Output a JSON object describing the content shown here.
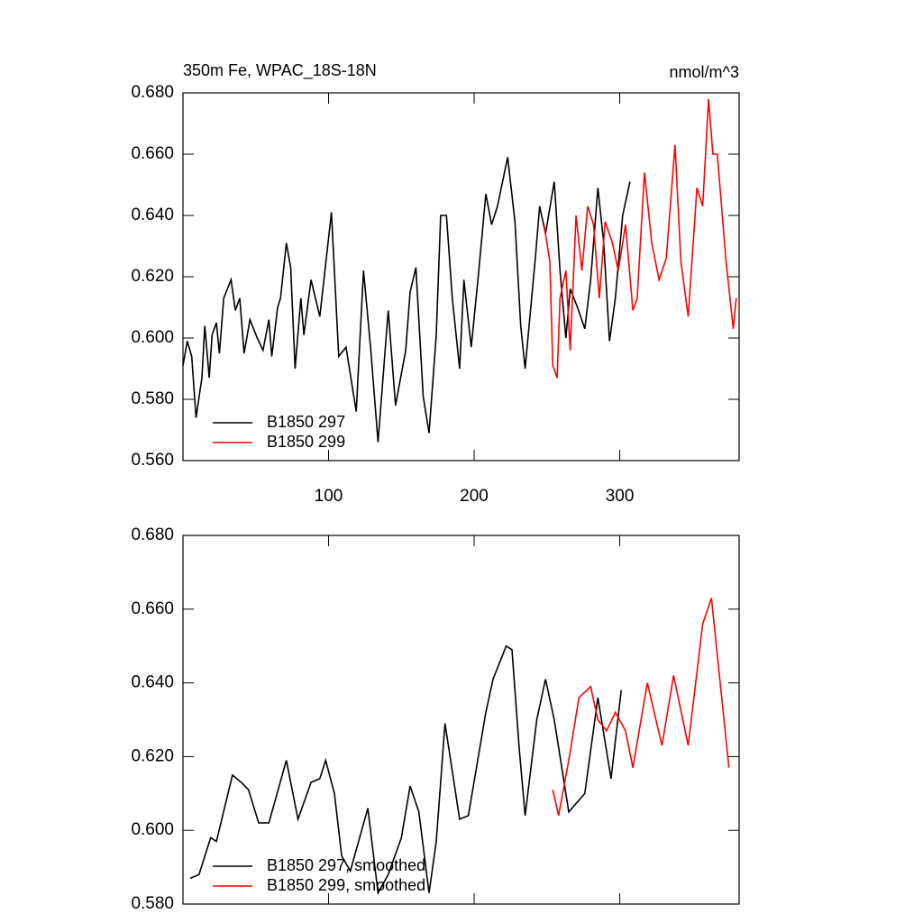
{
  "chart_data": [
    {
      "type": "line",
      "title": "350m Fe, WPAC_18S-18N",
      "right_title": "nmol/m^3",
      "xlim": [
        0,
        382
      ],
      "xticks": [
        100,
        200,
        300
      ],
      "xtick_labels": true,
      "ylim": [
        0.56,
        0.68
      ],
      "yticks": [
        {
          "value": 0.56,
          "label": "0.560"
        },
        {
          "value": 0.58,
          "label": "0.580"
        },
        {
          "value": 0.6,
          "label": "0.600"
        },
        {
          "value": 0.62,
          "label": "0.620"
        },
        {
          "value": 0.64,
          "label": "0.640"
        },
        {
          "value": 0.66,
          "label": "0.660"
        },
        {
          "value": 0.68,
          "label": "0.680"
        }
      ],
      "legend": "lower left",
      "series": [
        {
          "name": "B1850 297",
          "color": "#000000",
          "x": [
            0,
            3,
            6,
            9,
            13,
            15,
            18,
            20,
            23,
            25,
            28,
            33,
            36,
            39,
            42,
            46,
            51,
            55,
            59,
            61,
            65,
            67,
            71,
            74,
            77,
            81,
            83,
            88,
            94,
            102,
            107,
            112,
            119,
            124,
            129,
            134,
            141,
            146,
            153,
            156,
            160,
            165,
            169,
            174,
            177,
            181,
            185,
            190,
            193,
            198,
            203,
            208,
            212,
            216,
            223,
            228,
            232,
            235,
            242,
            245,
            249,
            255,
            259,
            263,
            266,
            271,
            276,
            280,
            285,
            289,
            293,
            297,
            302,
            307
          ],
          "values": [
            0.591,
            0.599,
            0.594,
            0.574,
            0.587,
            0.604,
            0.587,
            0.601,
            0.605,
            0.595,
            0.613,
            0.619,
            0.609,
            0.613,
            0.595,
            0.606,
            0.6,
            0.596,
            0.606,
            0.594,
            0.61,
            0.613,
            0.631,
            0.623,
            0.59,
            0.613,
            0.601,
            0.619,
            0.607,
            0.641,
            0.594,
            0.597,
            0.576,
            0.622,
            0.596,
            0.566,
            0.609,
            0.578,
            0.596,
            0.615,
            0.623,
            0.581,
            0.569,
            0.601,
            0.64,
            0.64,
            0.613,
            0.59,
            0.619,
            0.597,
            0.621,
            0.647,
            0.637,
            0.643,
            0.659,
            0.638,
            0.604,
            0.59,
            0.626,
            0.643,
            0.634,
            0.651,
            0.622,
            0.6,
            0.616,
            0.61,
            0.603,
            0.619,
            0.649,
            0.631,
            0.599,
            0.613,
            0.64,
            0.651
          ]
        },
        {
          "name": "B1850 299",
          "color": "#ff0000",
          "x": [
            248,
            252,
            254,
            257,
            259,
            263,
            266,
            270,
            274,
            278,
            282,
            286,
            290,
            295,
            299,
            304,
            309,
            312,
            317,
            322,
            327,
            332,
            338,
            342,
            347,
            353,
            357,
            361,
            364,
            367,
            373,
            378,
            380
          ],
          "values": [
            0.637,
            0.625,
            0.591,
            0.587,
            0.613,
            0.622,
            0.596,
            0.64,
            0.622,
            0.643,
            0.637,
            0.613,
            0.638,
            0.631,
            0.622,
            0.637,
            0.609,
            0.613,
            0.654,
            0.631,
            0.619,
            0.626,
            0.663,
            0.625,
            0.607,
            0.649,
            0.643,
            0.678,
            0.66,
            0.66,
            0.625,
            0.603,
            0.613
          ]
        }
      ]
    },
    {
      "type": "line",
      "xlim": [
        0,
        382
      ],
      "xticks": [
        100,
        200,
        300
      ],
      "xtick_labels": false,
      "ylim": [
        0.58,
        0.68
      ],
      "yticks": [
        {
          "value": 0.58,
          "label": "0.580"
        },
        {
          "value": 0.6,
          "label": "0.600"
        },
        {
          "value": 0.62,
          "label": "0.620"
        },
        {
          "value": 0.64,
          "label": "0.640"
        },
        {
          "value": 0.66,
          "label": "0.660"
        },
        {
          "value": 0.68,
          "label": "0.680"
        }
      ],
      "legend": "lower left",
      "series": [
        {
          "name": "B1850 297, smoothed",
          "color": "#000000",
          "x": [
            5,
            11,
            19,
            23,
            34,
            40,
            45,
            52,
            59,
            71,
            79,
            88,
            94,
            98,
            104,
            109,
            115,
            127,
            134,
            141,
            150,
            156,
            162,
            169,
            174,
            180,
            190,
            196,
            208,
            213,
            222,
            226,
            231,
            235,
            243,
            249,
            255,
            265,
            276,
            285,
            294,
            301
          ],
          "values": [
            0.587,
            0.588,
            0.598,
            0.597,
            0.615,
            0.613,
            0.611,
            0.602,
            0.602,
            0.619,
            0.603,
            0.613,
            0.614,
            0.619,
            0.61,
            0.593,
            0.589,
            0.606,
            0.583,
            0.588,
            0.598,
            0.612,
            0.605,
            0.583,
            0.597,
            0.629,
            0.603,
            0.604,
            0.632,
            0.641,
            0.65,
            0.649,
            0.622,
            0.604,
            0.63,
            0.641,
            0.63,
            0.605,
            0.61,
            0.636,
            0.614,
            0.638
          ]
        },
        {
          "name": "B1850 299, smoothed",
          "color": "#ff0000",
          "x": [
            254,
            258,
            265,
            272,
            280,
            285,
            291,
            297,
            304,
            309,
            319,
            329,
            337,
            347,
            357,
            363,
            369,
            375
          ],
          "values": [
            0.611,
            0.604,
            0.619,
            0.636,
            0.639,
            0.63,
            0.627,
            0.632,
            0.627,
            0.617,
            0.64,
            0.623,
            0.642,
            0.623,
            0.656,
            0.663,
            0.64,
            0.617
          ]
        }
      ]
    }
  ]
}
